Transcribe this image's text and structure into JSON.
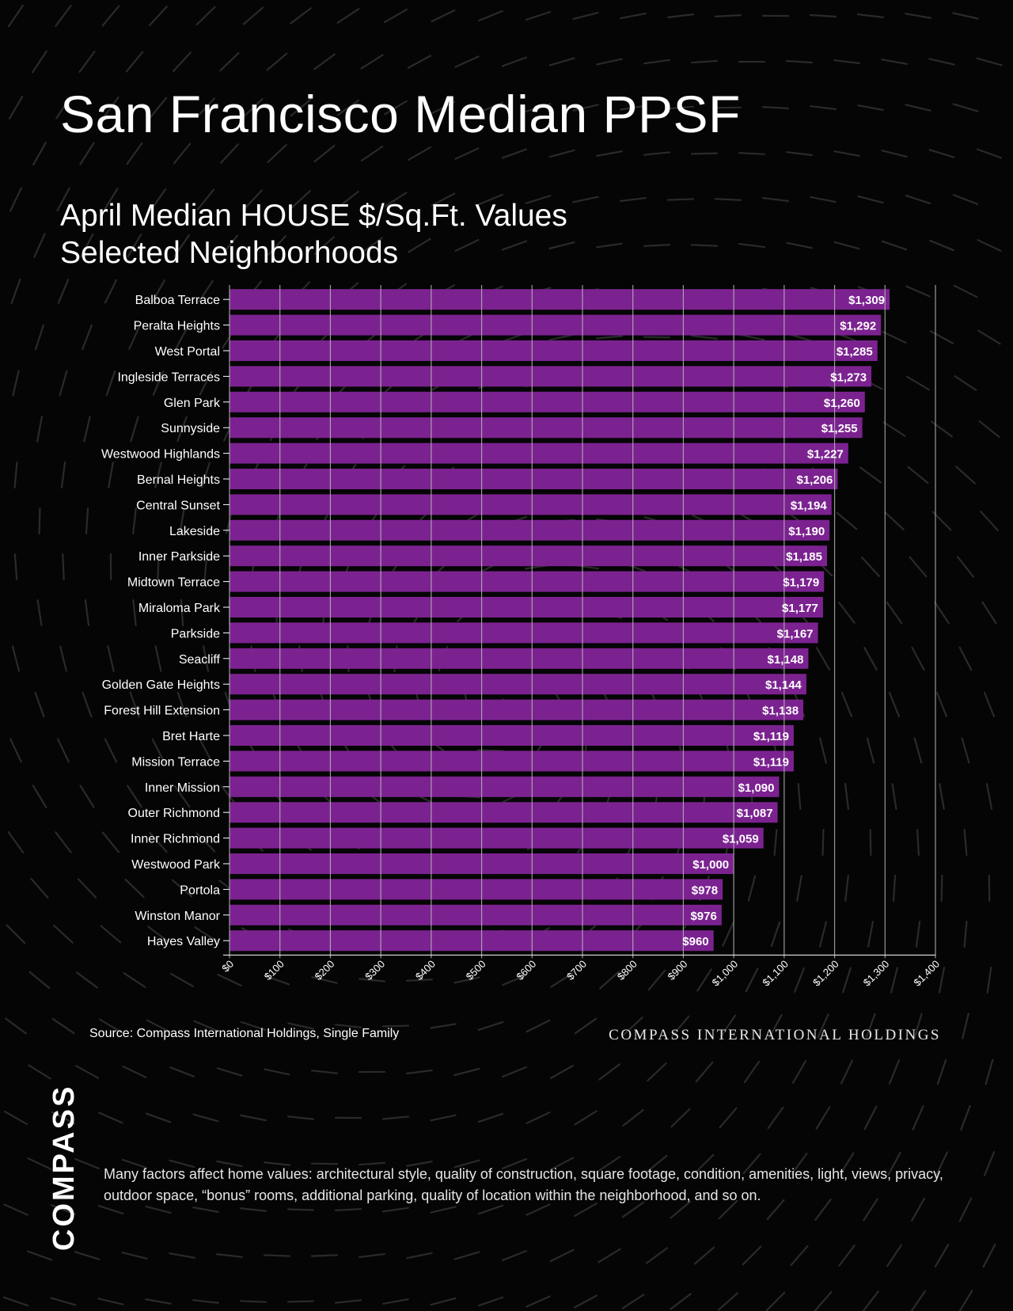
{
  "header": {
    "title": "San Francisco Median PPSF",
    "subtitle_line1": "April Median HOUSE $/Sq.Ft. Values",
    "subtitle_line2": "Selected Neighborhoods"
  },
  "colors": {
    "background": "#050505",
    "bar": "#7b2290",
    "text": "#ffffff",
    "grid": "#bdbdbd"
  },
  "chart_data": {
    "type": "bar",
    "orientation": "horizontal",
    "title": "San Francisco Median PPSF",
    "subtitle": "April Median HOUSE $/Sq.Ft. Values Selected Neighborhoods",
    "xlabel": "",
    "ylabel": "",
    "xlim": [
      0,
      1400
    ],
    "grid": true,
    "legend": "none",
    "categories": [
      "Balboa Terrace",
      "Peralta Heights",
      "West Portal",
      "Ingleside Terraces",
      "Glen Park",
      "Sunnyside",
      "Westwood Highlands",
      "Bernal Heights",
      "Central Sunset",
      "Lakeside",
      "Inner Parkside",
      "Midtown Terrace",
      "Miraloma Park",
      "Parkside",
      "Seacliff",
      "Golden Gate Heights",
      "Forest Hill Extension",
      "Bret Harte",
      "Mission Terrace",
      "Inner Mission",
      "Outer Richmond",
      "Inner Richmond",
      "Westwood Park",
      "Portola",
      "Winston Manor",
      "Hayes Valley"
    ],
    "values": [
      1309,
      1292,
      1285,
      1273,
      1260,
      1255,
      1227,
      1206,
      1194,
      1190,
      1185,
      1179,
      1177,
      1167,
      1148,
      1144,
      1138,
      1119,
      1119,
      1090,
      1087,
      1059,
      1000,
      978,
      976,
      960
    ],
    "data_labels": [
      "$1,309",
      "$1,292",
      "$1,285",
      "$1,273",
      "$1,260",
      "$1,255",
      "$1,227",
      "$1,206",
      "$1,194",
      "$1,190",
      "$1,185",
      "$1,179",
      "$1,177",
      "$1,167",
      "$1,148",
      "$1,144",
      "$1,138",
      "$1,119",
      "$1,119",
      "$1,090",
      "$1,087",
      "$1,059",
      "$1,000",
      "$978",
      "$976",
      "$960"
    ],
    "x_ticks": [
      "$0",
      "$100",
      "$200",
      "$300",
      "$400",
      "$500",
      "$600",
      "$700",
      "$800",
      "$900",
      "$1,000",
      "$1,100",
      "$1,200",
      "$1,300",
      "$1,400"
    ]
  },
  "footer": {
    "source": "Source: Compass International Holdings, Single Family",
    "brandline": "COMPASS INTERNATIONAL HOLDINGS",
    "logo": "COMPASS",
    "note": "Many factors affect home values: architectural style, quality of construction, square footage, condition, amenities, light, views, privacy, outdoor space, “bonus” rooms, additional parking, quality of location within the neighborhood, and so on."
  }
}
